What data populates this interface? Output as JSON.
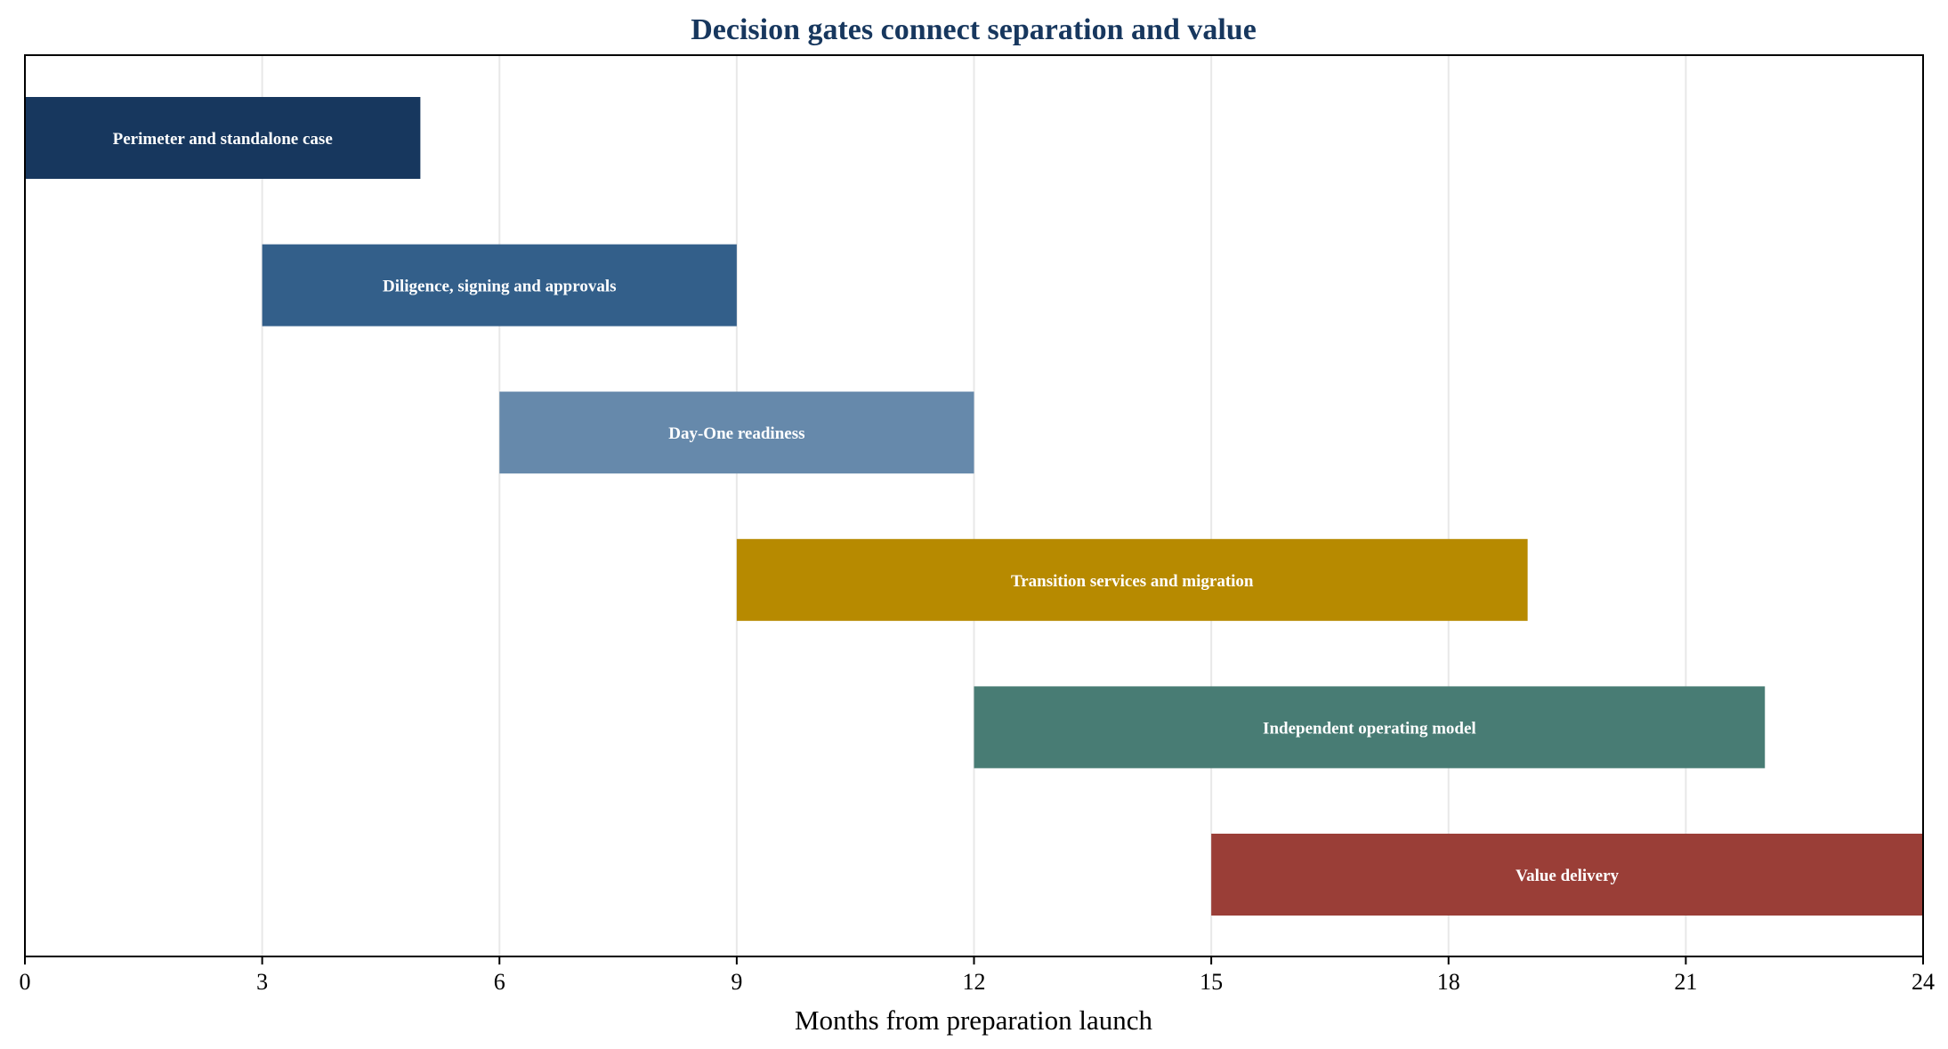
{
  "chart_data": {
    "type": "bar",
    "orientation": "horizontal",
    "title": "Decision gates connect separation and value",
    "xlabel": "Months from preparation launch",
    "ylabel": "",
    "xlim": [
      0,
      24
    ],
    "xticks": [
      0,
      3,
      6,
      9,
      12,
      15,
      18,
      21,
      24
    ],
    "grid": "vertical",
    "legend": "none",
    "tasks": [
      {
        "label": "Perimeter and standalone case",
        "start": 0,
        "end": 5,
        "color": "#17375e"
      },
      {
        "label": "Diligence, signing and approvals",
        "start": 3,
        "end": 9,
        "color": "#335f8a"
      },
      {
        "label": "Day-One readiness",
        "start": 6,
        "end": 12,
        "color": "#6689ab"
      },
      {
        "label": "Transition services and migration",
        "start": 9,
        "end": 19,
        "color": "#b78a00"
      },
      {
        "label": "Independent operating model",
        "start": 12,
        "end": 22,
        "color": "#487c74"
      },
      {
        "label": "Value delivery",
        "start": 15,
        "end": 24,
        "color": "#9a3e37"
      }
    ]
  },
  "colors": {
    "title": "#17375e",
    "grid": "#e8e8e8",
    "axis": "#000000"
  }
}
